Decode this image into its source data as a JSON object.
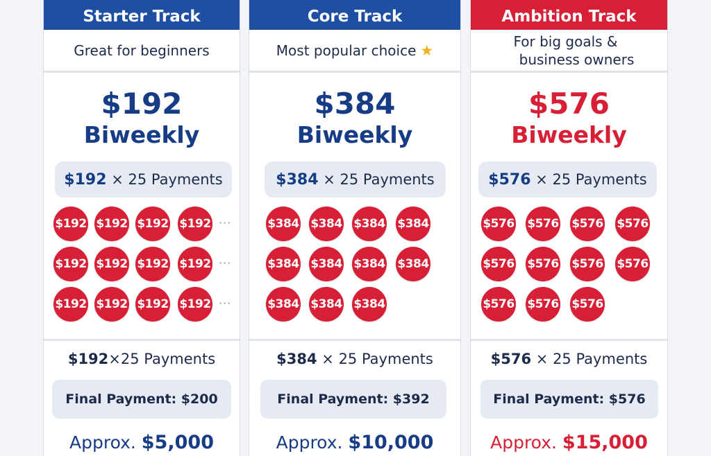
{
  "colors": {
    "blue": "#1e4fa3",
    "red": "#d71f35",
    "navy": "#173c86"
  },
  "plans": [
    {
      "name": "Starter Track",
      "tagline": "Great for beginners",
      "price": "$192",
      "frequency": "Biweekly",
      "pill_amount": "$192",
      "pill_rest": "× 25 Payments",
      "coin_label": "$192",
      "summary_amount": "$192",
      "summary_rest": "×25 Payments",
      "final_payment": "Final Payment: $200",
      "approx_label": "Approx.",
      "approx_value": "$5,000",
      "ellipsis": "···"
    },
    {
      "name": "Core Track",
      "tagline": "Most popular choice",
      "price": "$384",
      "frequency": "Biweekly",
      "pill_amount": "$384",
      "pill_rest": "× 25 Payments",
      "coin_label": "$384",
      "summary_amount": "$384",
      "summary_rest": "× 25 Payments",
      "final_payment": "Final Payment: $392",
      "approx_label": "Approx.",
      "approx_value": "$10,000"
    },
    {
      "name": "Ambition Track",
      "tagline_line1": "For big goals &",
      "tagline_line2": "business owners",
      "price": "$576",
      "frequency": "Biweekly",
      "pill_amount": "$576",
      "pill_rest": "× 25 Payments",
      "coin_label": "$576",
      "summary_amount": "$576",
      "summary_rest": "× 25 Payments",
      "final_payment": "Final Payment: $576",
      "approx_label": "Approx.",
      "approx_value": "$15,000"
    }
  ]
}
